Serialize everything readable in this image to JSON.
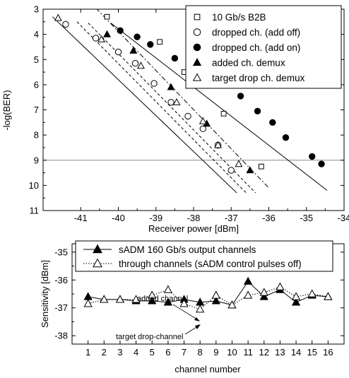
{
  "chart_data": [
    {
      "type": "scatter",
      "xlabel": "Receiver power [dBm]",
      "ylabel": "-log(BER)",
      "xlim": [
        -42,
        -34
      ],
      "ylim": [
        3,
        11
      ],
      "y_inverted": true,
      "x_ticks": [
        -41,
        -40,
        -39,
        -38,
        -37,
        -36,
        -35,
        -34
      ],
      "y_ticks": [
        3,
        4,
        5,
        6,
        7,
        8,
        9,
        10,
        11
      ],
      "legend_position": "top-right",
      "grid": false,
      "reference_line_y": 9,
      "series": [
        {
          "name": "10 Gb/s B2B",
          "marker": "square-open",
          "points": [
            [
              -40.3,
              3.3
            ],
            [
              -38.9,
              4.3
            ],
            [
              -38.25,
              5.5
            ],
            [
              -37.2,
              7.15
            ],
            [
              -36.2,
              9.25
            ]
          ],
          "fit_style": "dash-dot",
          "fit": [
            [
              -40.6,
              2.95
            ],
            [
              -36.0,
              10.1
            ]
          ]
        },
        {
          "name": "dropped ch. (add off)",
          "marker": "circle-open",
          "points": [
            [
              -41.4,
              3.6
            ],
            [
              -40.6,
              4.15
            ],
            [
              -40.0,
              4.7
            ],
            [
              -39.55,
              5.15
            ],
            [
              -39.05,
              5.95
            ],
            [
              -38.6,
              6.7
            ],
            [
              -38.15,
              7.25
            ],
            [
              -37.75,
              7.75
            ],
            [
              -37.35,
              8.4
            ],
            [
              -37.0,
              9.4
            ]
          ],
          "fit_style": "solid",
          "fit": [
            [
              -41.75,
              3.3
            ],
            [
              -36.85,
              10.3
            ]
          ]
        },
        {
          "name": "dropped ch. (add on)",
          "marker": "circle-filled",
          "points": [
            [
              -39.95,
              3.85
            ],
            [
              -39.5,
              4.1
            ],
            [
              -39.15,
              4.4
            ],
            [
              -38.5,
              4.95
            ],
            [
              -38.0,
              5.3
            ],
            [
              -37.5,
              5.8
            ],
            [
              -36.75,
              6.45
            ],
            [
              -36.3,
              7.05
            ],
            [
              -35.9,
              7.5
            ],
            [
              -35.55,
              8.1
            ],
            [
              -34.85,
              8.85
            ],
            [
              -34.6,
              9.15
            ]
          ],
          "fit_style": "solid",
          "fit": [
            [
              -40.2,
              3.55
            ],
            [
              -34.45,
              10.2
            ]
          ]
        },
        {
          "name": "added ch. demux",
          "marker": "triangle-filled",
          "points": [
            [
              -40.3,
              4.0
            ],
            [
              -39.6,
              4.65
            ],
            [
              -38.6,
              6.1
            ],
            [
              -37.65,
              7.55
            ],
            [
              -36.5,
              9.4
            ]
          ],
          "fit_style": "dashed",
          "fit": [
            [
              -40.8,
              3.55
            ],
            [
              -36.35,
              10.3
            ]
          ]
        },
        {
          "name": "target drop ch. demux",
          "marker": "triangle-open",
          "points": [
            [
              -41.6,
              3.35
            ],
            [
              -40.45,
              4.2
            ],
            [
              -39.4,
              5.25
            ],
            [
              -38.45,
              6.7
            ],
            [
              -37.75,
              7.45
            ],
            [
              -37.35,
              8.4
            ],
            [
              -36.8,
              9.15
            ]
          ],
          "fit_style": "dashed",
          "fit": [
            [
              -41.1,
              3.5
            ],
            [
              -36.6,
              10.3
            ]
          ]
        }
      ]
    },
    {
      "type": "line",
      "xlabel": "channel number",
      "ylabel": "Sensitivity [dBm]",
      "xlim": [
        0,
        17
      ],
      "ylim": [
        -38.3,
        -34.7
      ],
      "y_inverted": true,
      "x_ticks": [
        1,
        2,
        3,
        4,
        5,
        6,
        7,
        8,
        9,
        10,
        11,
        12,
        13,
        14,
        15,
        16
      ],
      "y_ticks": [
        -35,
        -36,
        -37,
        -38
      ],
      "legend_position": "top-center",
      "grid": false,
      "categories": [
        1,
        2,
        3,
        4,
        5,
        6,
        7,
        8,
        9,
        10,
        11,
        12,
        13,
        14,
        15,
        16
      ],
      "series": [
        {
          "name": "sADM 160 Gb/s output channels",
          "marker": "triangle-filled",
          "line_style": "solid",
          "values": [
            -36.6,
            -36.7,
            -36.7,
            -36.75,
            -36.75,
            -36.8,
            -36.7,
            -36.8,
            -36.75,
            -36.9,
            -36.05,
            -36.6,
            -36.35,
            -36.8,
            -36.55,
            -36.6
          ]
        },
        {
          "name": "through channels (sADM control pulses off)",
          "marker": "triangle-open",
          "line_style": "dotted",
          "values": [
            -36.85,
            -36.7,
            -36.7,
            -36.7,
            -36.55,
            -36.35,
            -36.85,
            -37.05,
            -36.55,
            -36.9,
            -36.55,
            -36.45,
            -36.25,
            -36.6,
            -36.5,
            -36.6
          ]
        }
      ],
      "annotations": [
        {
          "text": "added channel",
          "channel": 8,
          "target_series": 0
        },
        {
          "text": "target drop-channel",
          "channel": 8,
          "target_series": 1
        }
      ]
    }
  ]
}
